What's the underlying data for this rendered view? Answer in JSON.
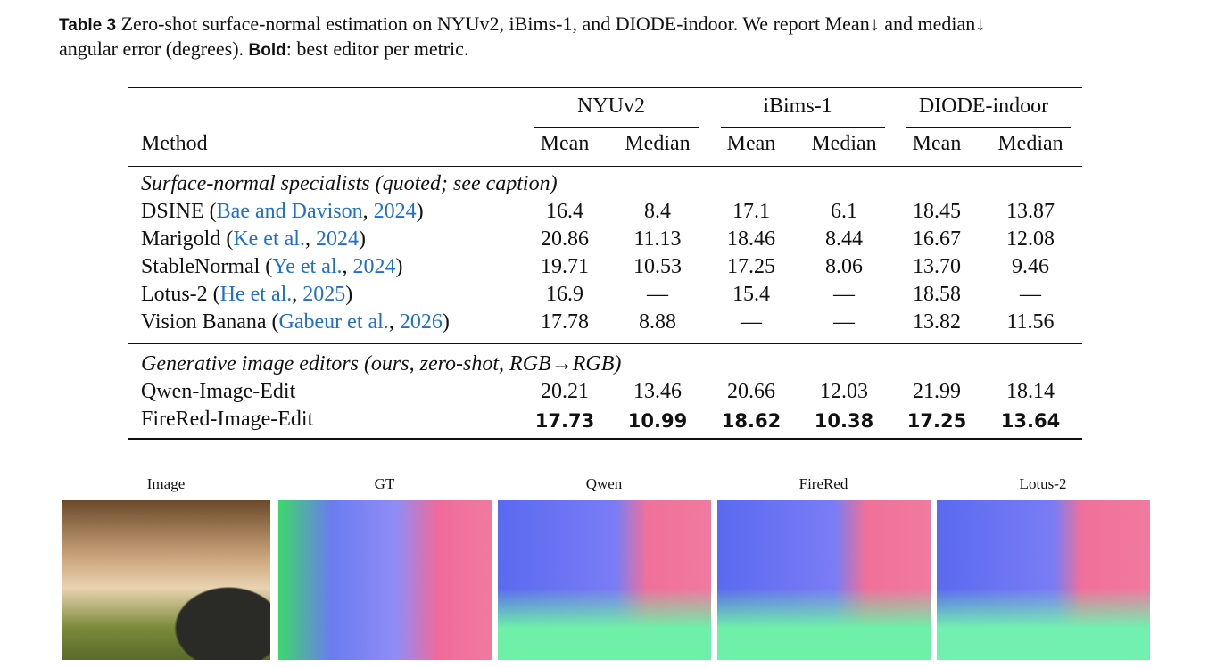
{
  "caption": {
    "label": "Table 3",
    "line1": "Zero-shot surface-normal estimation on NYUv2, iBims-1, and DIODE-indoor. We report Mean↓ and median↓",
    "line2": "angular error (degrees).",
    "bold": "Bold",
    "line2_end": ": best editor per metric."
  },
  "table": {
    "groups": [
      "NYUv2",
      "iBims-1",
      "DIODE-indoor"
    ],
    "header": [
      "Method",
      "Mean",
      "Median",
      "Mean",
      "Median",
      "Mean",
      "Median"
    ],
    "sections": [
      {
        "title": "Surface-normal specialists (quoted; see caption)",
        "rows": [
          {
            "method": [
              "DSINE (",
              "Bae and Davison",
              ", ",
              "2024",
              ")"
            ],
            "values": [
              "16.4",
              "8.4",
              "17.1",
              "6.1",
              "18.45",
              "13.87"
            ]
          },
          {
            "method": [
              "Marigold (",
              "Ke et al.",
              ", ",
              "2024",
              ")"
            ],
            "values": [
              "20.86",
              "11.13",
              "18.46",
              "8.44",
              "16.67",
              "12.08"
            ]
          },
          {
            "method": [
              "StableNormal (",
              "Ye et al.",
              ", ",
              "2024",
              ")"
            ],
            "values": [
              "19.71",
              "10.53",
              "17.25",
              "8.06",
              "13.70",
              "9.46"
            ]
          },
          {
            "method": [
              "Lotus-2 (",
              "He et al.",
              ", ",
              "2025",
              ")"
            ],
            "values": [
              "16.9",
              "—",
              "15.4",
              "—",
              "18.58",
              "—"
            ]
          },
          {
            "method": [
              "Vision Banana (",
              "Gabeur et al.",
              ", ",
              "2026",
              ")"
            ],
            "values": [
              "17.78",
              "8.88",
              "—",
              "—",
              "13.82",
              "11.56"
            ]
          }
        ]
      },
      {
        "title": "Generative image editors (ours, zero-shot, RGB→RGB)",
        "rows": [
          {
            "method": [
              "Qwen-Image-Edit"
            ],
            "values": [
              "20.21",
              "13.46",
              "20.66",
              "12.03",
              "21.99",
              "18.14"
            ]
          },
          {
            "method": [
              "FireRed-Image-Edit"
            ],
            "values": [
              "17.73",
              "10.99",
              "18.62",
              "10.38",
              "17.25",
              "13.64"
            ],
            "best": true
          }
        ]
      }
    ]
  },
  "figure": {
    "labels": [
      "Image",
      "GT",
      "Qwen",
      "FireRed",
      "Lotus-2"
    ]
  }
}
